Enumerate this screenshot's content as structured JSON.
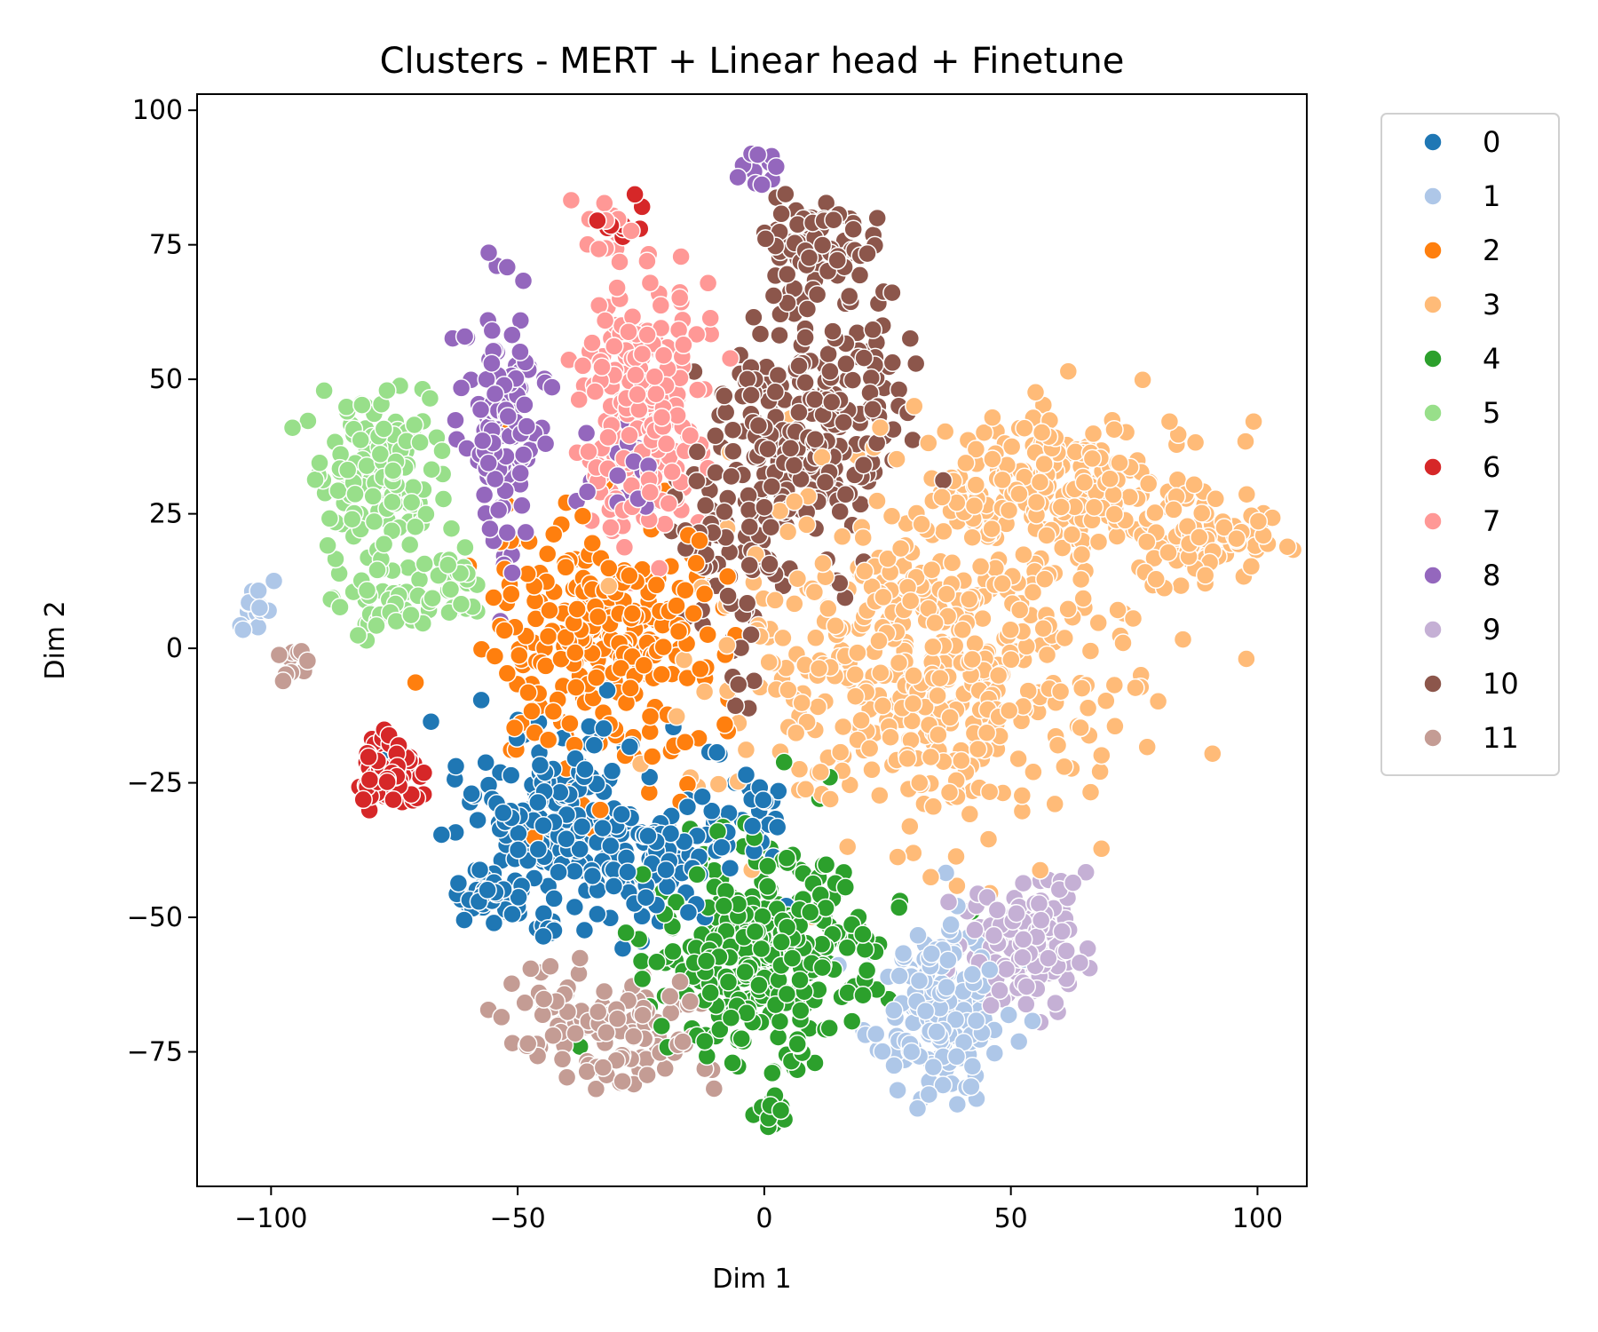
{
  "chart_data": {
    "type": "scatter",
    "title": "Clusters - MERT + Linear head + Finetune",
    "xlabel": "Dim 1",
    "ylabel": "Dim 2",
    "xlim": [
      -115,
      110
    ],
    "ylim": [
      -100,
      103
    ],
    "xticks": [
      -100,
      -50,
      0,
      50,
      100
    ],
    "yticks": [
      -75,
      -50,
      -25,
      0,
      25,
      50,
      75,
      100
    ],
    "xtick_labels": [
      "−100",
      "−50",
      "0",
      "50",
      "100"
    ],
    "ytick_labels": [
      "−75",
      "−50",
      "−25",
      "0",
      "25",
      "50",
      "75",
      "100"
    ],
    "grid": false,
    "legend_position": "outside-right",
    "series": [
      {
        "name": "0",
        "color": "#1f77b4",
        "clusters": [
          {
            "cx": -42,
            "cy": -30,
            "sx": 10,
            "sy": 8,
            "n": 180
          },
          {
            "cx": -26,
            "cy": -40,
            "sx": 7,
            "sy": 6,
            "n": 70
          },
          {
            "cx": -57,
            "cy": -47,
            "sx": 4,
            "sy": 3,
            "n": 40
          },
          {
            "cx": -43,
            "cy": -52,
            "sx": 2,
            "sy": 1,
            "n": 10
          },
          {
            "cx": -8,
            "cy": -32,
            "sx": 7,
            "sy": 6,
            "n": 40
          }
        ]
      },
      {
        "name": "1",
        "color": "#aec7e8",
        "clusters": [
          {
            "cx": 35,
            "cy": -67,
            "sx": 7,
            "sy": 8,
            "n": 190
          },
          {
            "cx": -103,
            "cy": 7,
            "sx": 2,
            "sy": 3,
            "n": 15
          }
        ]
      },
      {
        "name": "2",
        "color": "#ff7f0e",
        "clusters": [
          {
            "cx": -33,
            "cy": 2,
            "sx": 12,
            "sy": 11,
            "n": 280
          }
        ]
      },
      {
        "name": "3",
        "color": "#ffbb78",
        "clusters": [
          {
            "cx": 35,
            "cy": -3,
            "sx": 20,
            "sy": 16,
            "n": 500
          },
          {
            "cx": 62,
            "cy": 30,
            "sx": 15,
            "sy": 7,
            "n": 220
          },
          {
            "cx": 90,
            "cy": 20,
            "sx": 7,
            "sy": 3,
            "n": 70
          }
        ]
      },
      {
        "name": "4",
        "color": "#2ca02c",
        "clusters": [
          {
            "cx": 0,
            "cy": -57,
            "sx": 11,
            "sy": 10,
            "n": 340
          },
          {
            "cx": 2,
            "cy": -86,
            "sx": 2,
            "sy": 2,
            "n": 10
          }
        ]
      },
      {
        "name": "5",
        "color": "#98df8a",
        "clusters": [
          {
            "cx": -78,
            "cy": 33,
            "sx": 6,
            "sy": 9,
            "n": 140
          },
          {
            "cx": -76,
            "cy": 8,
            "sx": 5,
            "sy": 4,
            "n": 35
          },
          {
            "cx": -64,
            "cy": 12,
            "sx": 3,
            "sy": 4,
            "n": 30
          }
        ]
      },
      {
        "name": "6",
        "color": "#d62728",
        "clusters": [
          {
            "cx": -76,
            "cy": -23,
            "sx": 3,
            "sy": 3,
            "n": 90
          },
          {
            "cx": -30,
            "cy": 79,
            "sx": 3,
            "sy": 2,
            "n": 10
          }
        ]
      },
      {
        "name": "7",
        "color": "#ff9896",
        "clusters": [
          {
            "cx": -25,
            "cy": 45,
            "sx": 6,
            "sy": 12,
            "n": 240
          },
          {
            "cx": -31,
            "cy": 79,
            "sx": 2,
            "sy": 2,
            "n": 12
          }
        ]
      },
      {
        "name": "8",
        "color": "#9467bd",
        "clusters": [
          {
            "cx": -53,
            "cy": 40,
            "sx": 4,
            "sy": 12,
            "n": 120
          },
          {
            "cx": 0,
            "cy": 89,
            "sx": 2,
            "sy": 2,
            "n": 15
          },
          {
            "cx": -27,
            "cy": 32,
            "sx": 4,
            "sy": 5,
            "n": 25
          }
        ]
      },
      {
        "name": "9",
        "color": "#c5b0d5",
        "clusters": [
          {
            "cx": 52,
            "cy": -55,
            "sx": 7,
            "sy": 6,
            "n": 140
          }
        ]
      },
      {
        "name": "10",
        "color": "#8c564b",
        "clusters": [
          {
            "cx": 10,
            "cy": 42,
            "sx": 9,
            "sy": 13,
            "n": 250
          },
          {
            "cx": 10,
            "cy": 75,
            "sx": 6,
            "sy": 5,
            "n": 80
          },
          {
            "cx": -8,
            "cy": 15,
            "sx": 5,
            "sy": 12,
            "n": 70
          }
        ]
      },
      {
        "name": "11",
        "color": "#c49c94",
        "clusters": [
          {
            "cx": -30,
            "cy": -73,
            "sx": 9,
            "sy": 5,
            "n": 90
          },
          {
            "cx": -44,
            "cy": -66,
            "sx": 5,
            "sy": 4,
            "n": 30
          },
          {
            "cx": -95,
            "cy": -5,
            "sx": 2,
            "sy": 3,
            "n": 10
          }
        ]
      }
    ]
  }
}
